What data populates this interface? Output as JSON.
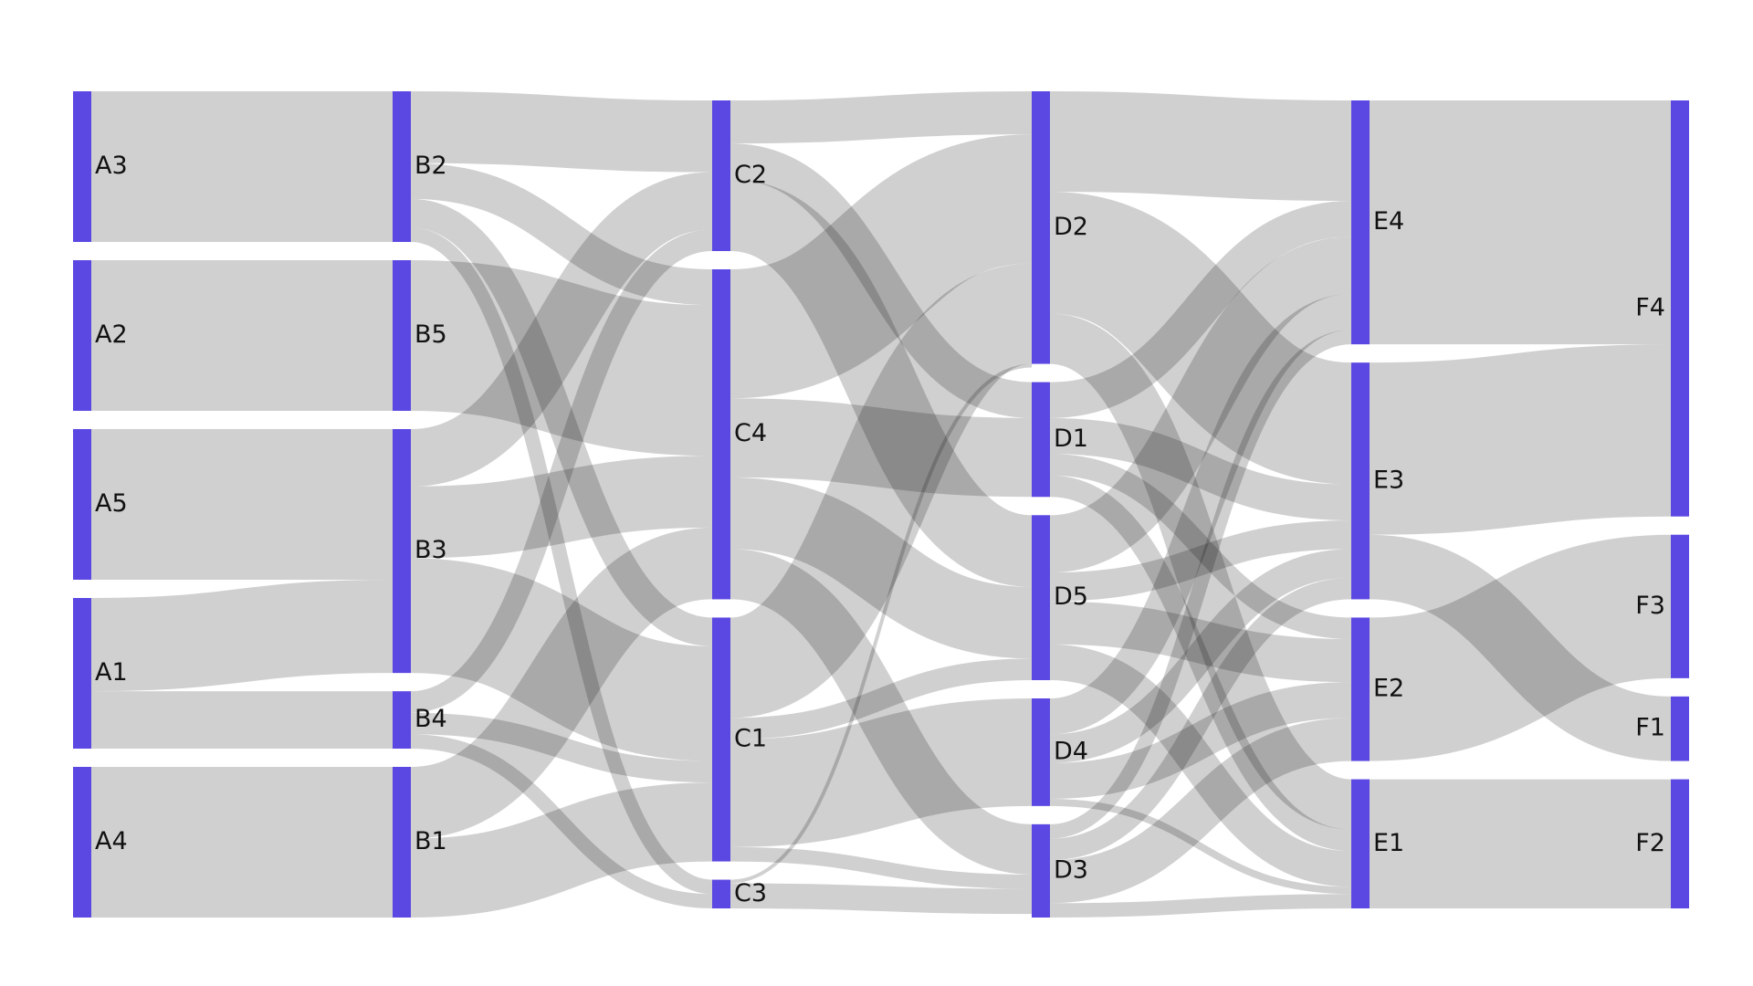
{
  "chart_data": {
    "type": "sankey",
    "title": "",
    "colors": {
      "node": "#5b48e2",
      "link": "#c8c8c8",
      "background": "#ffffff"
    },
    "columns": [
      [
        "A3",
        "A2",
        "A5",
        "A1",
        "A4"
      ],
      [
        "B2",
        "B5",
        "B3",
        "B4",
        "B1"
      ],
      [
        "C2",
        "C4",
        "C1",
        "C3"
      ],
      [
        "D2",
        "D1",
        "D5",
        "D4",
        "D3"
      ],
      [
        "E4",
        "E3",
        "E2",
        "E1"
      ],
      [
        "F4",
        "F3",
        "F1",
        "F2"
      ]
    ],
    "nodes": [
      {
        "id": "A3",
        "label": "A3",
        "value": 21
      },
      {
        "id": "A2",
        "label": "A2",
        "value": 21
      },
      {
        "id": "A5",
        "label": "A5",
        "value": 21
      },
      {
        "id": "A1",
        "label": "A1",
        "value": 21
      },
      {
        "id": "A4",
        "label": "A4",
        "value": 21
      },
      {
        "id": "B2",
        "label": "B2",
        "value": 21
      },
      {
        "id": "B5",
        "label": "B5",
        "value": 21
      },
      {
        "id": "B3",
        "label": "B3",
        "value": 34
      },
      {
        "id": "B4",
        "label": "B4",
        "value": 8
      },
      {
        "id": "B1",
        "label": "B1",
        "value": 21
      },
      {
        "id": "C2",
        "label": "C2",
        "value": 21
      },
      {
        "id": "C4",
        "label": "C4",
        "value": 46
      },
      {
        "id": "C1",
        "label": "C1",
        "value": 34
      },
      {
        "id": "C3",
        "label": "C3",
        "value": 4
      },
      {
        "id": "D2",
        "label": "D2",
        "value": 38
      },
      {
        "id": "D1",
        "label": "D1",
        "value": 16
      },
      {
        "id": "D5",
        "label": "D5",
        "value": 23
      },
      {
        "id": "D4",
        "label": "D4",
        "value": 15
      },
      {
        "id": "D3",
        "label": "D3",
        "value": 13
      },
      {
        "id": "E4",
        "label": "E4",
        "value": 34
      },
      {
        "id": "E3",
        "label": "E3",
        "value": 33
      },
      {
        "id": "E2",
        "label": "E2",
        "value": 20
      },
      {
        "id": "E1",
        "label": "E1",
        "value": 18
      },
      {
        "id": "F4",
        "label": "F4",
        "value": 58
      },
      {
        "id": "F3",
        "label": "F3",
        "value": 20
      },
      {
        "id": "F1",
        "label": "F1",
        "value": 9
      },
      {
        "id": "F2",
        "label": "F2",
        "value": 18
      }
    ],
    "links": [
      {
        "source": "A3",
        "target": "B2",
        "value": 21
      },
      {
        "source": "A2",
        "target": "B5",
        "value": 21
      },
      {
        "source": "A5",
        "target": "B3",
        "value": 21
      },
      {
        "source": "A1",
        "target": "B3",
        "value": 13
      },
      {
        "source": "A1",
        "target": "B4",
        "value": 8
      },
      {
        "source": "A4",
        "target": "B1",
        "value": 21
      },
      {
        "source": "B2",
        "target": "C2",
        "value": 10
      },
      {
        "source": "B2",
        "target": "C4",
        "value": 5
      },
      {
        "source": "B2",
        "target": "C1",
        "value": 4
      },
      {
        "source": "B2",
        "target": "C3",
        "value": 2
      },
      {
        "source": "B5",
        "target": "C4",
        "value": 21
      },
      {
        "source": "B3",
        "target": "C4",
        "value": 10
      },
      {
        "source": "B3",
        "target": "C2",
        "value": 8
      },
      {
        "source": "B3",
        "target": "C1",
        "value": 16
      },
      {
        "source": "B4",
        "target": "C2",
        "value": 3
      },
      {
        "source": "B4",
        "target": "C1",
        "value": 3
      },
      {
        "source": "B4",
        "target": "C3",
        "value": 2
      },
      {
        "source": "B1",
        "target": "C4",
        "value": 10
      },
      {
        "source": "B1",
        "target": "C1",
        "value": 11
      },
      {
        "source": "C2",
        "target": "D2",
        "value": 6
      },
      {
        "source": "C2",
        "target": "D5",
        "value": 10
      },
      {
        "source": "C2",
        "target": "D1",
        "value": 5
      },
      {
        "source": "C4",
        "target": "D2",
        "value": 18
      },
      {
        "source": "C4",
        "target": "D1",
        "value": 11
      },
      {
        "source": "C4",
        "target": "D5",
        "value": 10
      },
      {
        "source": "C4",
        "target": "D3",
        "value": 7
      },
      {
        "source": "C1",
        "target": "D2",
        "value": 14
      },
      {
        "source": "C1",
        "target": "D5",
        "value": 3
      },
      {
        "source": "C1",
        "target": "D4",
        "value": 15
      },
      {
        "source": "C1",
        "target": "D3",
        "value": 2
      },
      {
        "source": "C3",
        "target": "D2",
        "value": 0.5
      },
      {
        "source": "C3",
        "target": "D3",
        "value": 3.5
      },
      {
        "source": "D2",
        "target": "E4",
        "value": 14
      },
      {
        "source": "D2",
        "target": "E3",
        "value": 17
      },
      {
        "source": "D2",
        "target": "E1",
        "value": 7
      },
      {
        "source": "D1",
        "target": "E4",
        "value": 5
      },
      {
        "source": "D1",
        "target": "E3",
        "value": 5
      },
      {
        "source": "D1",
        "target": "E2",
        "value": 3
      },
      {
        "source": "D1",
        "target": "E1",
        "value": 3
      },
      {
        "source": "D5",
        "target": "E4",
        "value": 8
      },
      {
        "source": "D5",
        "target": "E3",
        "value": 4
      },
      {
        "source": "D5",
        "target": "E2",
        "value": 6
      },
      {
        "source": "D5",
        "target": "E1",
        "value": 5
      },
      {
        "source": "D4",
        "target": "E4",
        "value": 5
      },
      {
        "source": "D4",
        "target": "E3",
        "value": 4
      },
      {
        "source": "D4",
        "target": "E2",
        "value": 5
      },
      {
        "source": "D4",
        "target": "E1",
        "value": 1
      },
      {
        "source": "D3",
        "target": "E4",
        "value": 2
      },
      {
        "source": "D3",
        "target": "E3",
        "value": 3
      },
      {
        "source": "D3",
        "target": "E2",
        "value": 6
      },
      {
        "source": "D3",
        "target": "E1",
        "value": 2
      },
      {
        "source": "E4",
        "target": "F4",
        "value": 34
      },
      {
        "source": "E3",
        "target": "F4",
        "value": 24
      },
      {
        "source": "E3",
        "target": "F1",
        "value": 9
      },
      {
        "source": "E2",
        "target": "F3",
        "value": 20
      },
      {
        "source": "E1",
        "target": "F2",
        "value": 18
      }
    ]
  }
}
